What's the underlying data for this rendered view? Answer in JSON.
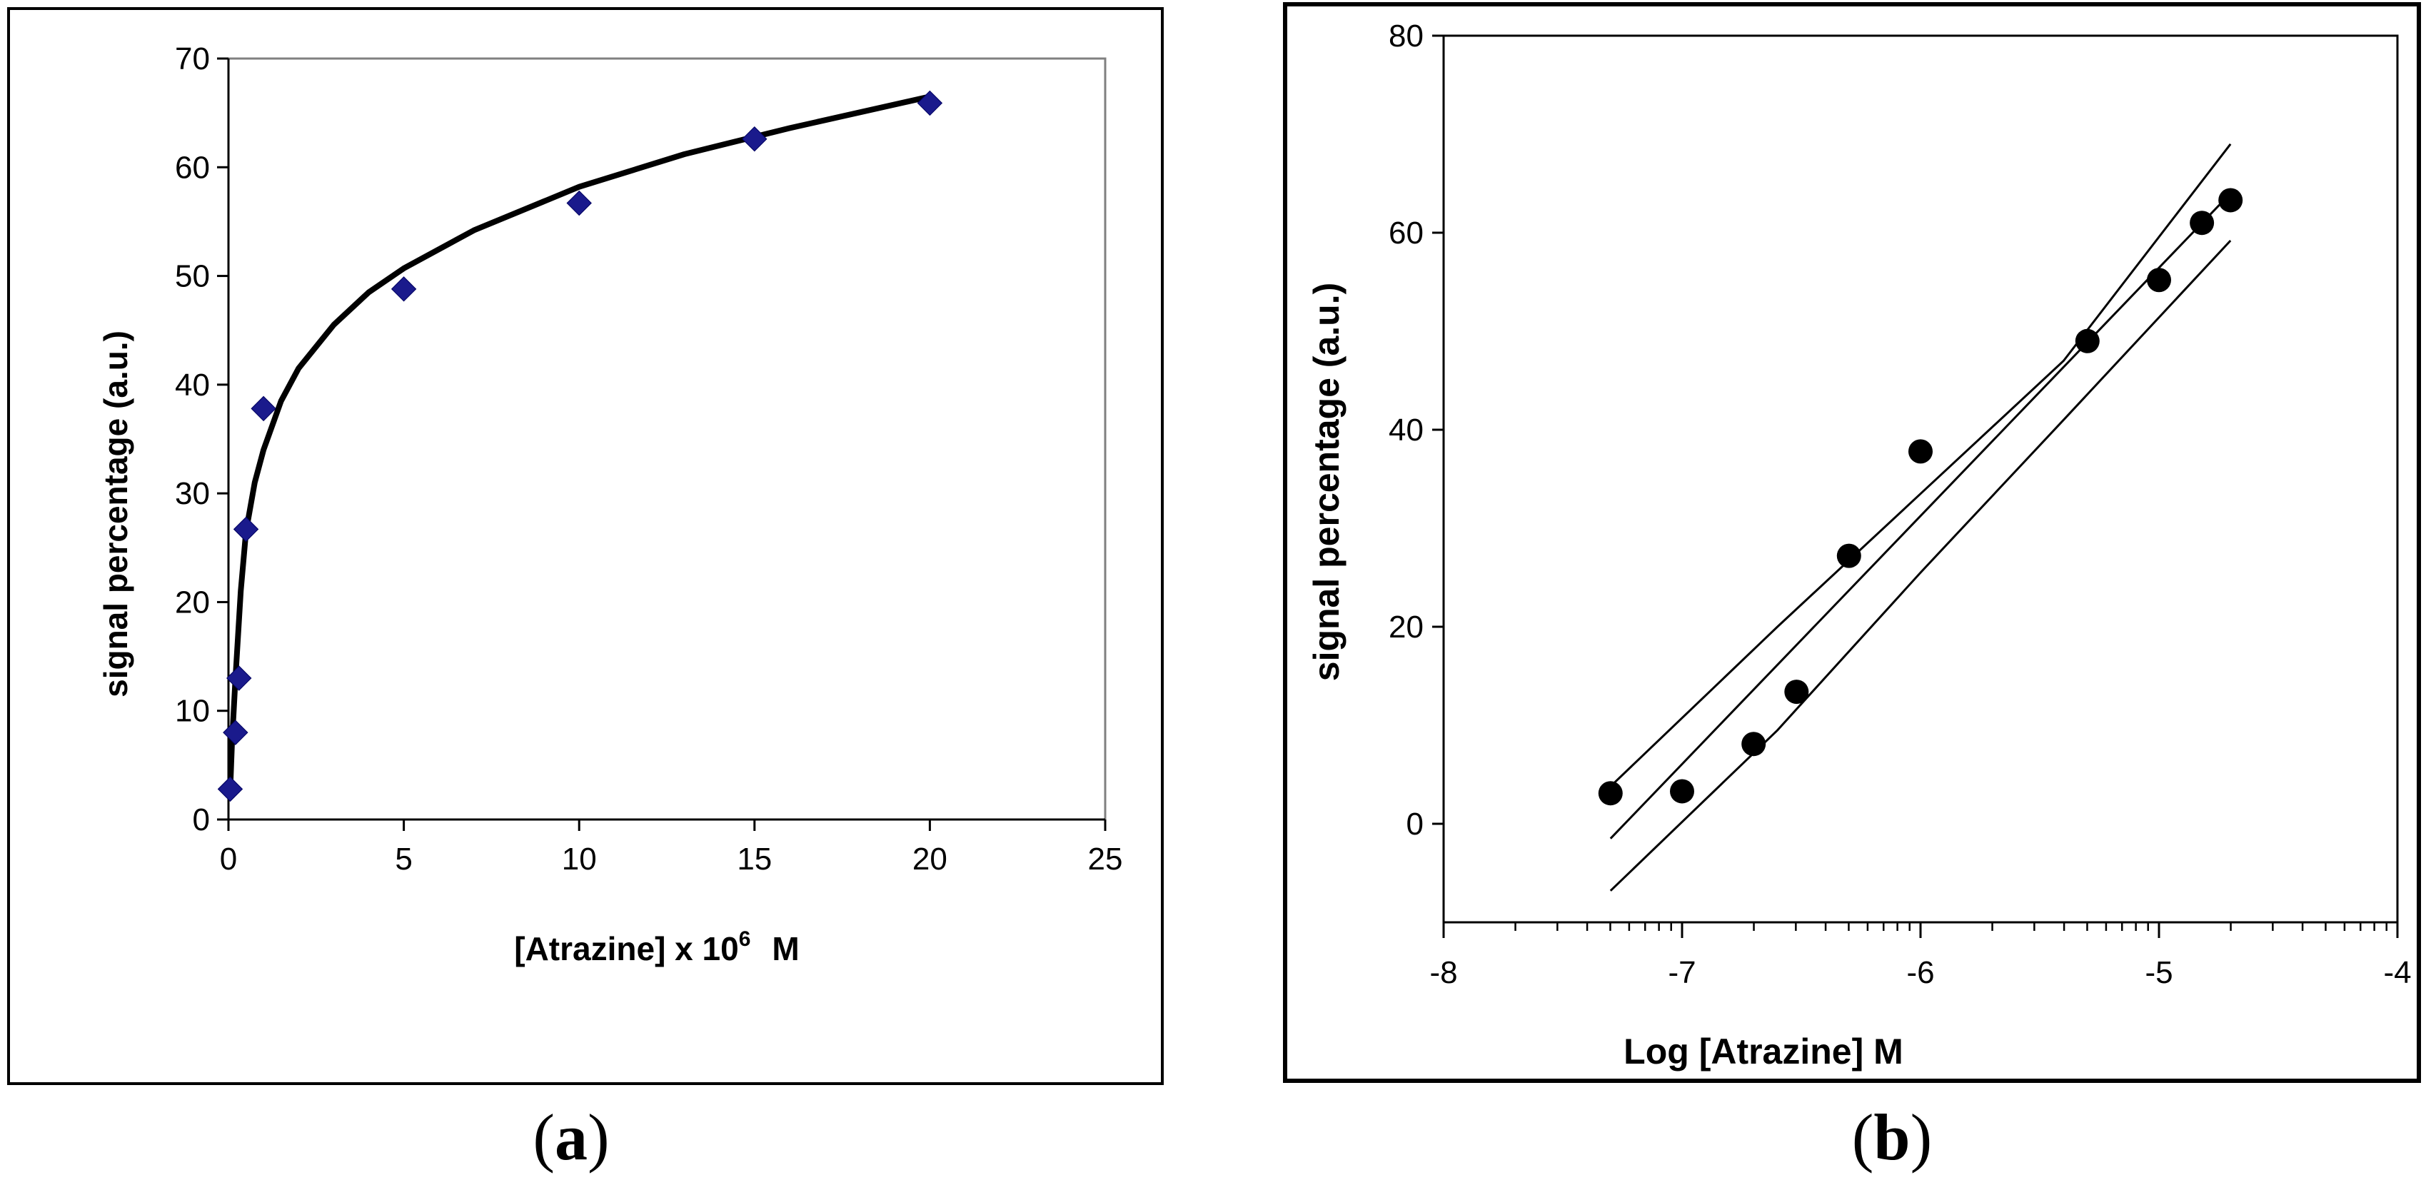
{
  "captions": {
    "a": "a",
    "b": "b"
  },
  "chart_data": [
    {
      "type": "scatter",
      "panel": "a",
      "xlabel": "[Atrazine] x 10",
      "xlabel_sup": "6",
      "xlabel_unit": "M",
      "ylabel": "signal percentage (a.u.)",
      "xlim": [
        0,
        25
      ],
      "ylim": [
        0,
        70
      ],
      "xticks": [
        0,
        5,
        10,
        15,
        20,
        25
      ],
      "yticks": [
        0,
        10,
        20,
        30,
        40,
        50,
        60,
        70
      ],
      "grid": false,
      "legend": "none",
      "marker": "diamond",
      "marker_color": "#1a1a8c",
      "points": [
        {
          "x": 0.05,
          "y": 2.8
        },
        {
          "x": 0.2,
          "y": 8
        },
        {
          "x": 0.3,
          "y": 13
        },
        {
          "x": 0.5,
          "y": 26.7
        },
        {
          "x": 1.0,
          "y": 37.8
        },
        {
          "x": 5.0,
          "y": 48.8
        },
        {
          "x": 10.0,
          "y": 56.7
        },
        {
          "x": 15.0,
          "y": 62.6
        },
        {
          "x": 20.0,
          "y": 65.9
        }
      ],
      "fit_curve": [
        {
          "x": 0.05,
          "y": 2.8
        },
        {
          "x": 0.1,
          "y": 7
        },
        {
          "x": 0.2,
          "y": 13
        },
        {
          "x": 0.35,
          "y": 21
        },
        {
          "x": 0.5,
          "y": 26.5
        },
        {
          "x": 0.75,
          "y": 31
        },
        {
          "x": 1.0,
          "y": 34
        },
        {
          "x": 1.5,
          "y": 38.5
        },
        {
          "x": 2.0,
          "y": 41.5
        },
        {
          "x": 3.0,
          "y": 45.5
        },
        {
          "x": 4.0,
          "y": 48.5
        },
        {
          "x": 5.0,
          "y": 50.7
        },
        {
          "x": 7.0,
          "y": 54.2
        },
        {
          "x": 10.0,
          "y": 58.2
        },
        {
          "x": 13.0,
          "y": 61.2
        },
        {
          "x": 16.0,
          "y": 63.6
        },
        {
          "x": 20.0,
          "y": 66.5
        }
      ]
    },
    {
      "type": "scatter",
      "panel": "b",
      "xlabel": "Log [Atrazine] M",
      "ylabel": "signal percentage (a.u.)",
      "xlim": [
        -8,
        -4
      ],
      "ylim": [
        -10,
        80
      ],
      "xticks": [
        -8,
        -7,
        -6,
        -5,
        -4
      ],
      "yticks": [
        0,
        20,
        40,
        60,
        80
      ],
      "x_axis_position": -10,
      "grid": false,
      "legend": "none",
      "marker": "circle",
      "marker_color": "#000000",
      "points": [
        {
          "x": -7.3,
          "y": 3.1
        },
        {
          "x": -7.0,
          "y": 3.3
        },
        {
          "x": -6.7,
          "y": 8.1
        },
        {
          "x": -6.52,
          "y": 13.4
        },
        {
          "x": -6.3,
          "y": 27.2
        },
        {
          "x": -6.0,
          "y": 37.8
        },
        {
          "x": -5.3,
          "y": 49.0
        },
        {
          "x": -5.0,
          "y": 55.2
        },
        {
          "x": -4.82,
          "y": 61.0
        },
        {
          "x": -4.7,
          "y": 63.3
        }
      ],
      "fit_line": [
        {
          "x": -7.3,
          "y": -1.5
        },
        {
          "x": -4.7,
          "y": 64.0
        }
      ],
      "confidence_upper": [
        {
          "x": -7.3,
          "y": 3.8
        },
        {
          "x": -6.6,
          "y": 20
        },
        {
          "x": -6.0,
          "y": 33.5
        },
        {
          "x": -5.4,
          "y": 47
        },
        {
          "x": -4.7,
          "y": 69.0
        }
      ],
      "confidence_lower": [
        {
          "x": -7.3,
          "y": -6.8
        },
        {
          "x": -6.6,
          "y": 9.5
        },
        {
          "x": -6.0,
          "y": 25.5
        },
        {
          "x": -5.4,
          "y": 41
        },
        {
          "x": -4.7,
          "y": 59.2
        }
      ]
    }
  ]
}
